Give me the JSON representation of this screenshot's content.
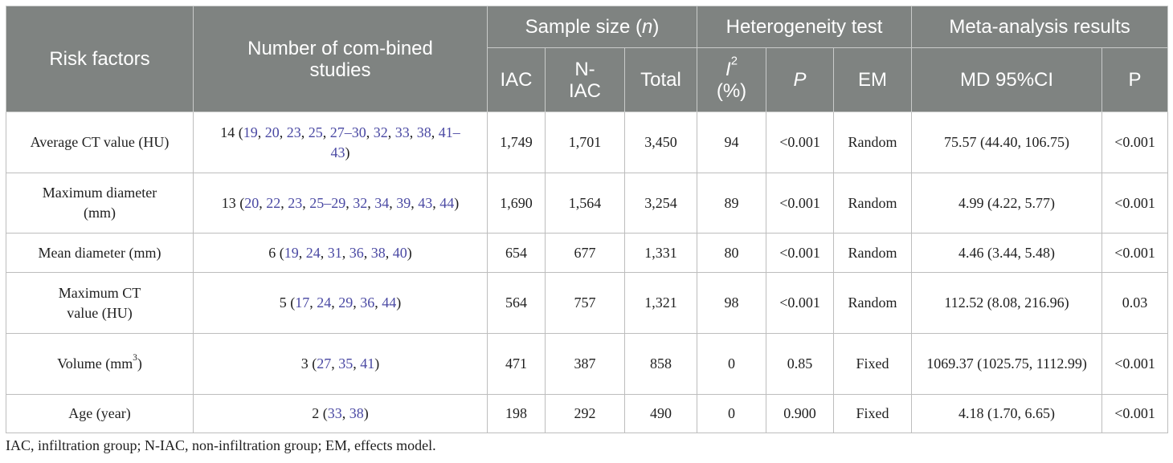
{
  "headers": {
    "risk_factors": "Risk factors",
    "num_studies": "Number of com-bined studies",
    "sample_size_prefix": "Sample size (",
    "sample_size_n": "n",
    "sample_size_suffix": ")",
    "heterogeneity": "Heterogeneity test",
    "meta_results": "Meta-analysis results",
    "iac": "IAC",
    "n_iac": "N-IAC",
    "total": "Total",
    "i2_letter": "I",
    "i2_sup": "2",
    "i2_unit": "(%)",
    "p_italic": "P",
    "em": "EM",
    "md_ci": "MD 95%CI",
    "p": "P"
  },
  "rows": [
    {
      "factor": "Average CT value (HU)",
      "studies_count": "14",
      "refs": [
        "19",
        "20",
        "23",
        "25",
        "27–30",
        "32",
        "33",
        "38",
        "41–43"
      ],
      "iac": "1,749",
      "n_iac": "1,701",
      "total": "3,450",
      "i2": "94",
      "p_het": "<0.001",
      "em": "Random",
      "md_ci": "75.57 (44.40, 106.75)",
      "p": "<0.001"
    },
    {
      "factor": "Maximum diameter (mm)",
      "studies_count": "13",
      "refs": [
        "20",
        "22",
        "23",
        "25–29",
        "32",
        "34",
        "39",
        "43",
        "44"
      ],
      "iac": "1,690",
      "n_iac": "1,564",
      "total": "3,254",
      "i2": "89",
      "p_het": "<0.001",
      "em": "Random",
      "md_ci": "4.99 (4.22, 5.77)",
      "p": "<0.001"
    },
    {
      "factor": "Mean diameter (mm)",
      "studies_count": "6",
      "refs": [
        "19",
        "24",
        "31",
        "36",
        "38",
        "40"
      ],
      "iac": "654",
      "n_iac": "677",
      "total": "1,331",
      "i2": "80",
      "p_het": "<0.001",
      "em": "Random",
      "md_ci": "4.46 (3.44, 5.48)",
      "p": "<0.001"
    },
    {
      "factor": "Maximum CT value (HU)",
      "studies_count": "5",
      "refs": [
        "17",
        "24",
        "29",
        "36",
        "44"
      ],
      "iac": "564",
      "n_iac": "757",
      "total": "1,321",
      "i2": "98",
      "p_het": "<0.001",
      "em": "Random",
      "md_ci": "112.52 (8.08, 216.96)",
      "p": "0.03"
    },
    {
      "factor": "Volume (mm",
      "factor_sup": "3",
      "factor_suffix": ")",
      "studies_count": "3",
      "refs": [
        "27",
        "35",
        "41"
      ],
      "iac": "471",
      "n_iac": "387",
      "total": "858",
      "i2": "0",
      "p_het": "0.85",
      "em": "Fixed",
      "md_ci": "1069.37 (1025.75, 1112.99)",
      "p": "<0.001"
    },
    {
      "factor": "Age (year)",
      "studies_count": "2",
      "refs": [
        "33",
        "38"
      ],
      "iac": "198",
      "n_iac": "292",
      "total": "490",
      "i2": "0",
      "p_het": "0.900",
      "em": "Fixed",
      "md_ci": "4.18 (1.70, 6.65)",
      "p": "<0.001"
    }
  ],
  "footnote": "IAC, infiltration group; N-IAC, non-infiltration group; EM, effects model."
}
